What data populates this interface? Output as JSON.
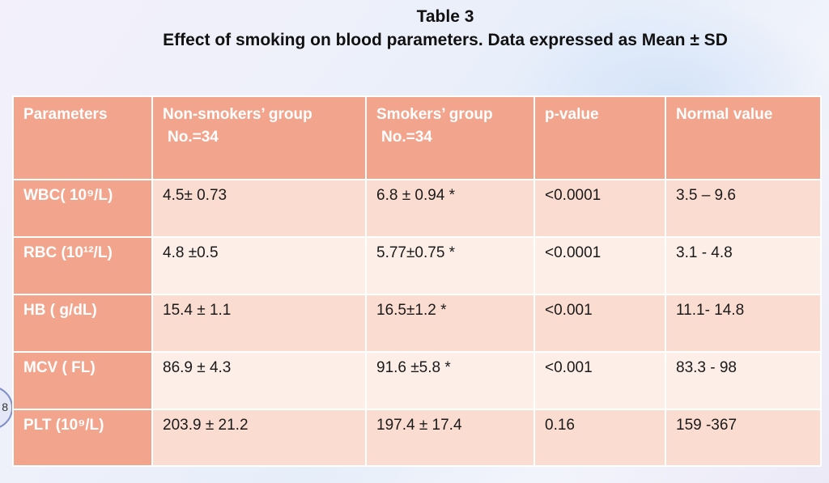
{
  "title": "Table 3",
  "subtitle": "Effect of smoking on blood parameters. Data expressed as Mean ± SD",
  "side_marker": "8",
  "table": {
    "headers": [
      {
        "line1": "Parameters",
        "line2": ""
      },
      {
        "line1": "Non-smokers’ group",
        "line2": "No.=34"
      },
      {
        "line1": "Smokers’ group",
        "line2": "No.=34"
      },
      {
        "line1": "p-value",
        "line2": ""
      },
      {
        "line1": "Normal value",
        "line2": ""
      }
    ],
    "rows": [
      {
        "parameter": "WBC( 10⁹/L)",
        "non_smokers": "4.5± 0.73",
        "smokers": "6.8 ± 0.94 *",
        "p_value": "<0.0001",
        "normal": "3.5 – 9.6"
      },
      {
        "parameter": "RBC (10¹²/L)",
        "non_smokers": "4.8 ±0.5",
        "smokers": "5.77±0.75 *",
        "p_value": "<0.0001",
        "normal": "3.1 - 4.8"
      },
      {
        "parameter": "HB ( g/dL)",
        "non_smokers": "15.4 ± 1.1",
        "smokers": "16.5±1.2 *",
        "p_value": "<0.001",
        "normal": "11.1- 14.8"
      },
      {
        "parameter": "MCV ( FL)",
        "non_smokers": "86.9 ± 4.3",
        "smokers": "91.6 ±5.8 *",
        "p_value": "<0.001",
        "normal": "83.3 - 98"
      },
      {
        "parameter": "PLT (10⁹/L)",
        "non_smokers": "203.9 ± 21.2",
        "smokers": "197.4 ± 17.4",
        "p_value": "0.16",
        "normal": "159 -367"
      }
    ]
  },
  "colors": {
    "header_bg": "#f2a48c",
    "row_dark": "#fbdcd1",
    "row_light": "#fdeee8"
  }
}
